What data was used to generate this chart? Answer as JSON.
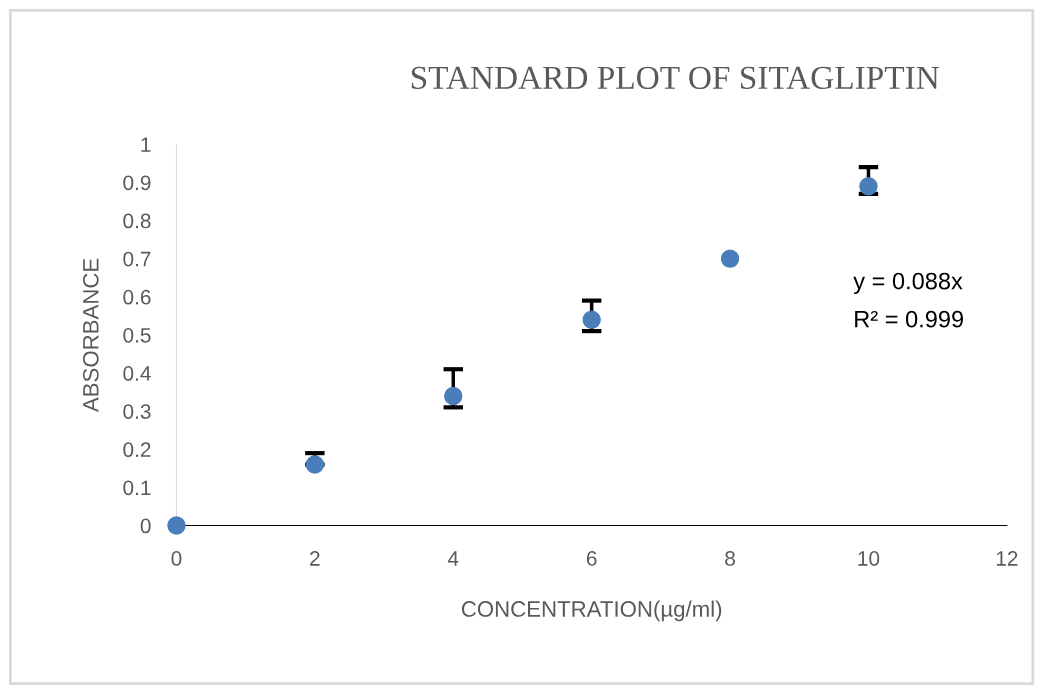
{
  "chart_data": {
    "type": "scatter",
    "title": "STANDARD PLOT OF SITAGLIPTIN",
    "xlabel": "CONCENTRATION(µg/ml)",
    "ylabel": "ABSORBANCE",
    "x": [
      0,
      2,
      4,
      6,
      8,
      10
    ],
    "series": [
      {
        "color": "#4a7ebb",
        "values": [
          0,
          0.16,
          0.34,
          0.54,
          0.7,
          0.89
        ],
        "errors": [
          null,
          [
            0.16,
            0.19
          ],
          [
            0.31,
            0.41
          ],
          [
            0.51,
            0.59
          ],
          null,
          [
            0.87,
            0.94
          ]
        ]
      }
    ],
    "marker": "circle",
    "grid": false,
    "legend": false,
    "xlim": [
      0,
      12
    ],
    "xticks": [
      0,
      2,
      4,
      6,
      8,
      10,
      12
    ],
    "ylim": [
      0,
      1
    ],
    "yticks": [
      0,
      0.1,
      0.2,
      0.3,
      0.4,
      0.5,
      0.6,
      0.7,
      0.8,
      0.9,
      1
    ],
    "annotations": [
      "y = 0.088x",
      "R² = 0.999"
    ]
  }
}
